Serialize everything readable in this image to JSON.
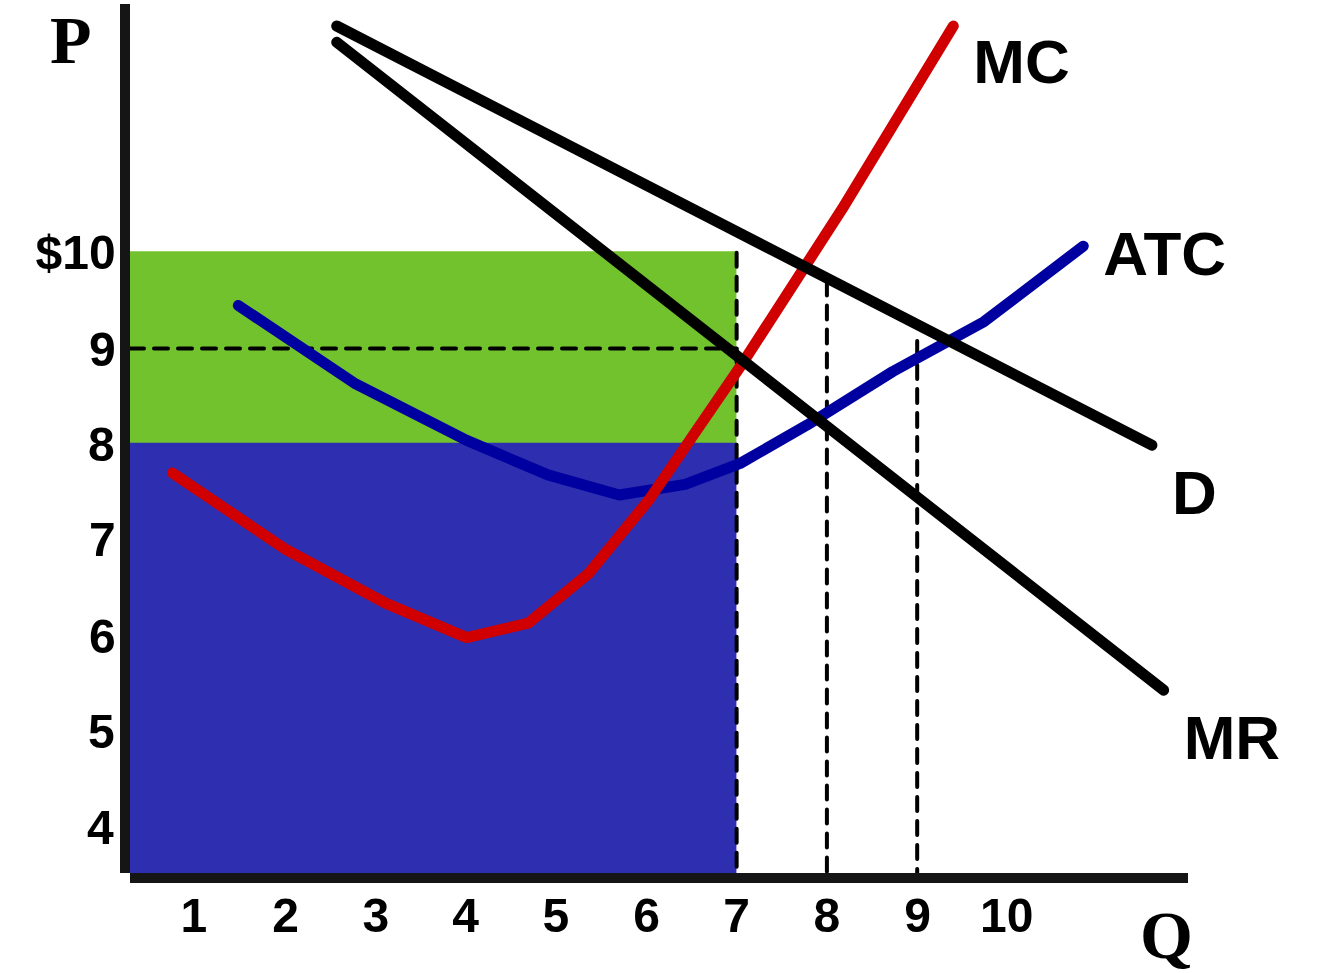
{
  "chart_data": {
    "type": "line",
    "xlabel": "Q",
    "ylabel": "P",
    "xlim": [
      0.28,
      12
    ],
    "ylim": [
      3.52,
      12.6
    ],
    "xticks": [
      1,
      2,
      3,
      4,
      5,
      6,
      7,
      8,
      9,
      10
    ],
    "yticks": [
      4,
      5,
      6,
      7,
      8,
      9,
      {
        "value": 10,
        "label": "$10"
      }
    ],
    "grid": false,
    "legend": false,
    "marker": "none",
    "series": [
      {
        "type": "area",
        "color": "#2e2eb0",
        "x": [
          0.28,
          7
        ],
        "values": [
          8,
          8
        ]
      },
      {
        "type": "area",
        "color": "#72c22e",
        "x": [
          0.28,
          7
        ],
        "values": [
          10,
          10
        ]
      },
      {
        "name": "D",
        "color": "#000000",
        "x": [
          2.57,
          11.6
        ],
        "values": [
          12.37,
          7.99
        ]
      },
      {
        "name": "MR",
        "color": "#000000",
        "x": [
          2.57,
          11.73
        ],
        "values": [
          12.2,
          5.43
        ]
      },
      {
        "name": "MC",
        "color": "#d00000",
        "x": [
          0.75,
          1.99,
          3.11,
          4.01,
          4.69,
          5.36,
          6.03,
          7.04,
          8.17,
          9.4
        ],
        "values": [
          7.7,
          6.91,
          6.34,
          5.98,
          6.13,
          6.65,
          7.42,
          8.81,
          10.46,
          12.37
        ]
      },
      {
        "name": "ATC",
        "color": "#0000a0",
        "x": [
          1.48,
          2.78,
          4.01,
          4.91,
          5.7,
          6.43,
          7.04,
          7.78,
          8.73,
          9.74,
          10.84
        ],
        "values": [
          9.45,
          8.63,
          8.04,
          7.68,
          7.47,
          7.58,
          7.8,
          8.2,
          8.76,
          9.28,
          10.07
        ]
      },
      {
        "color": "#000000",
        "line_style": "dashed",
        "x": [
          0.28,
          7
        ],
        "values": [
          9,
          9
        ]
      },
      {
        "color": "#000000",
        "line_style": "dashed",
        "x": [
          7,
          7
        ],
        "values": [
          10,
          3.52
        ]
      },
      {
        "color": "#000000",
        "line_style": "dashed",
        "x": [
          8,
          8
        ],
        "values": [
          9.7,
          3.52
        ]
      },
      {
        "color": "#000000",
        "line_style": "dashed",
        "x": [
          9,
          9
        ],
        "values": [
          9.08,
          3.52
        ]
      }
    ]
  }
}
